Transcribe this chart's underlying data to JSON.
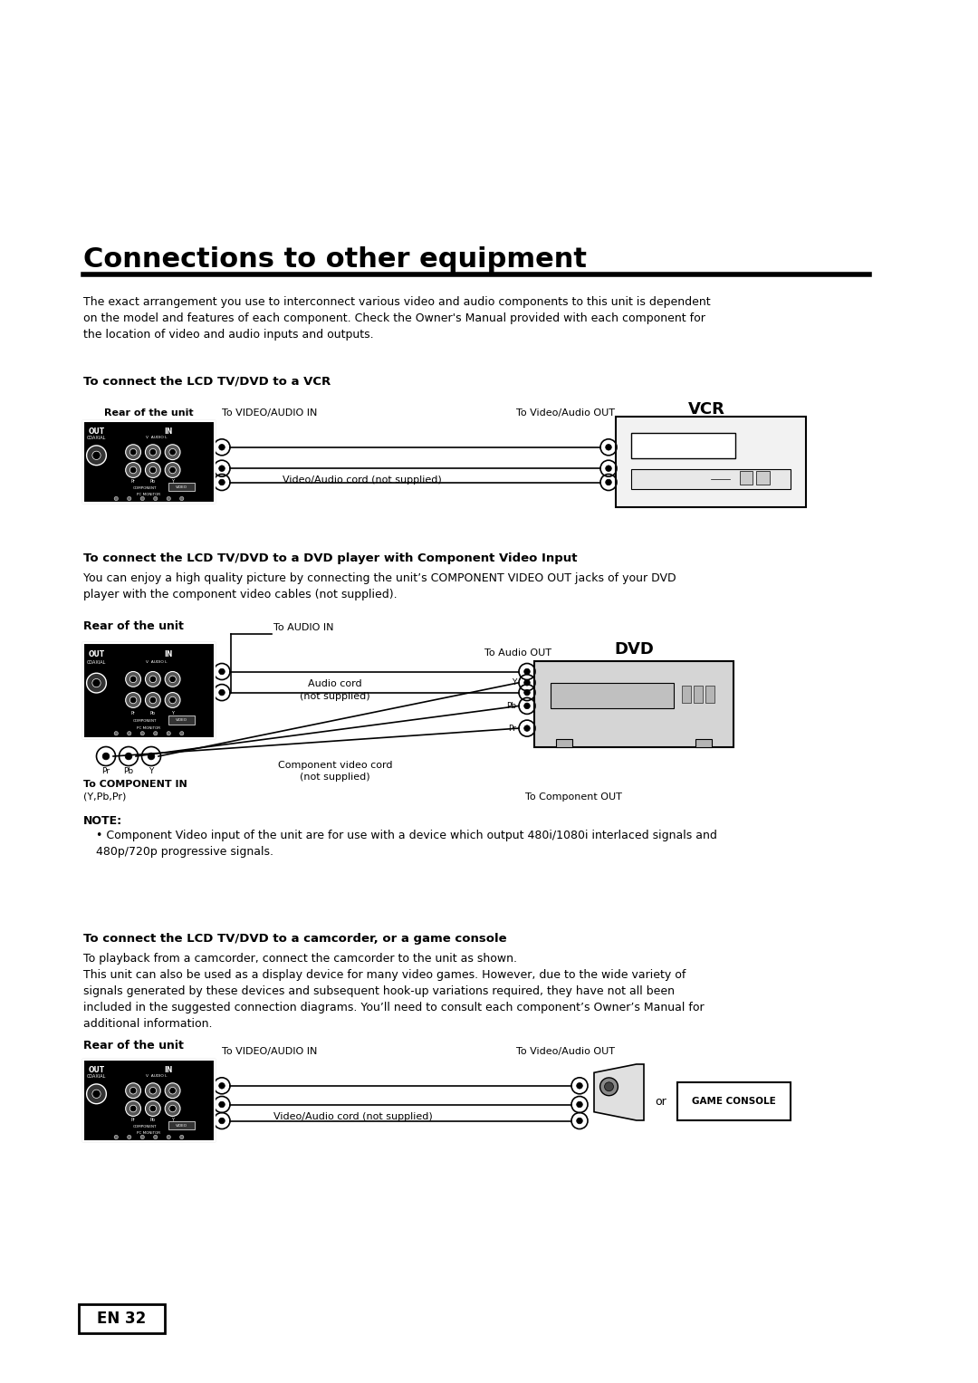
{
  "bg_color": "#ffffff",
  "title": "Connections to other equipment",
  "body_fontsize": 9.0,
  "small_fontsize": 8.0,
  "label_fontsize": 8.0,
  "note_text": "Component Video input of the unit are for use with a device which output 480i/1080i interlaced signals and\n480p/720p progressive signals.",
  "page_label": "EN 32",
  "intro_text": "The exact arrangement you use to interconnect various video and audio components to this unit is dependent\non the model and features of each component. Check the Owner's Manual provided with each component for\nthe location of video and audio inputs and outputs.",
  "section1_title": "To connect the LCD TV/DVD to a VCR",
  "section2_title": "To connect the LCD TV/DVD to a DVD player with Component Video Input",
  "section2_subtitle": "You can enjoy a high quality picture by connecting the unit’s COMPONENT VIDEO OUT jacks of your DVD\nplayer with the component video cables (not supplied).",
  "section3_title": "To connect the LCD TV/DVD to a camcorder, or a game console",
  "section3_subtitle": "To playback from a camcorder, connect the camcorder to the unit as shown.\nThis unit can also be used as a display device for many video games. However, due to the wide variety of\nsignals generated by these devices and subsequent hook-up variations required, they have not all been\nincluded in the suggested connection diagrams. You’ll need to consult each component’s Owner’s Manual for\nadditional information."
}
